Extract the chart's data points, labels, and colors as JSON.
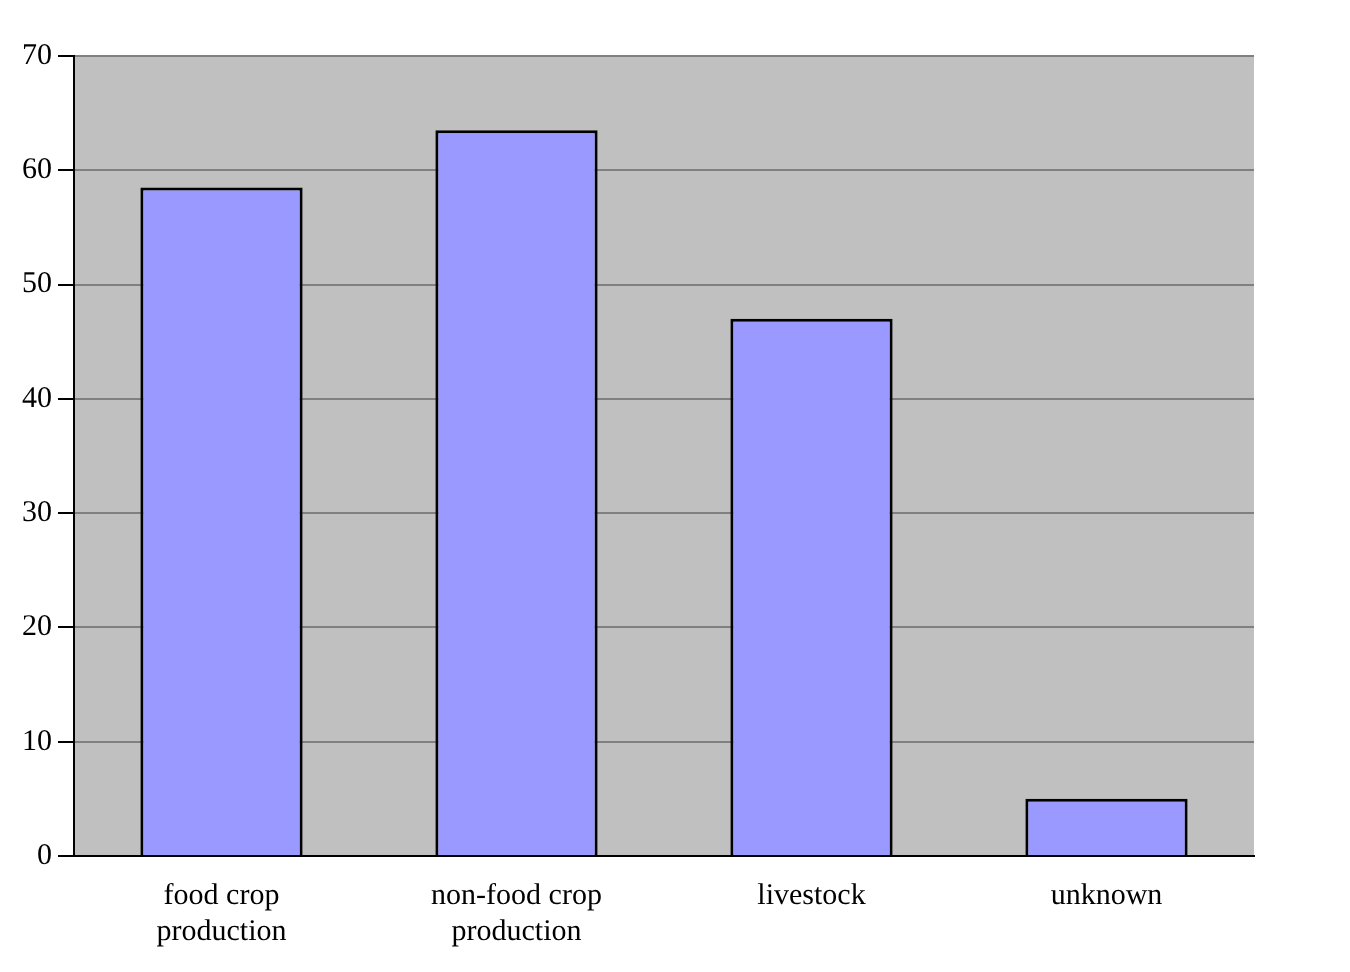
{
  "chart_data": {
    "type": "bar",
    "categories": [
      "food crop production",
      "non-food crop production",
      "livestock",
      "unknown"
    ],
    "values": [
      58.5,
      63.5,
      47,
      5
    ],
    "color": "#9999ff",
    "ylim": [
      0,
      70
    ],
    "yticks": [
      0,
      10,
      20,
      30,
      40,
      50,
      60,
      70
    ],
    "grid": "y",
    "legend": false
  }
}
